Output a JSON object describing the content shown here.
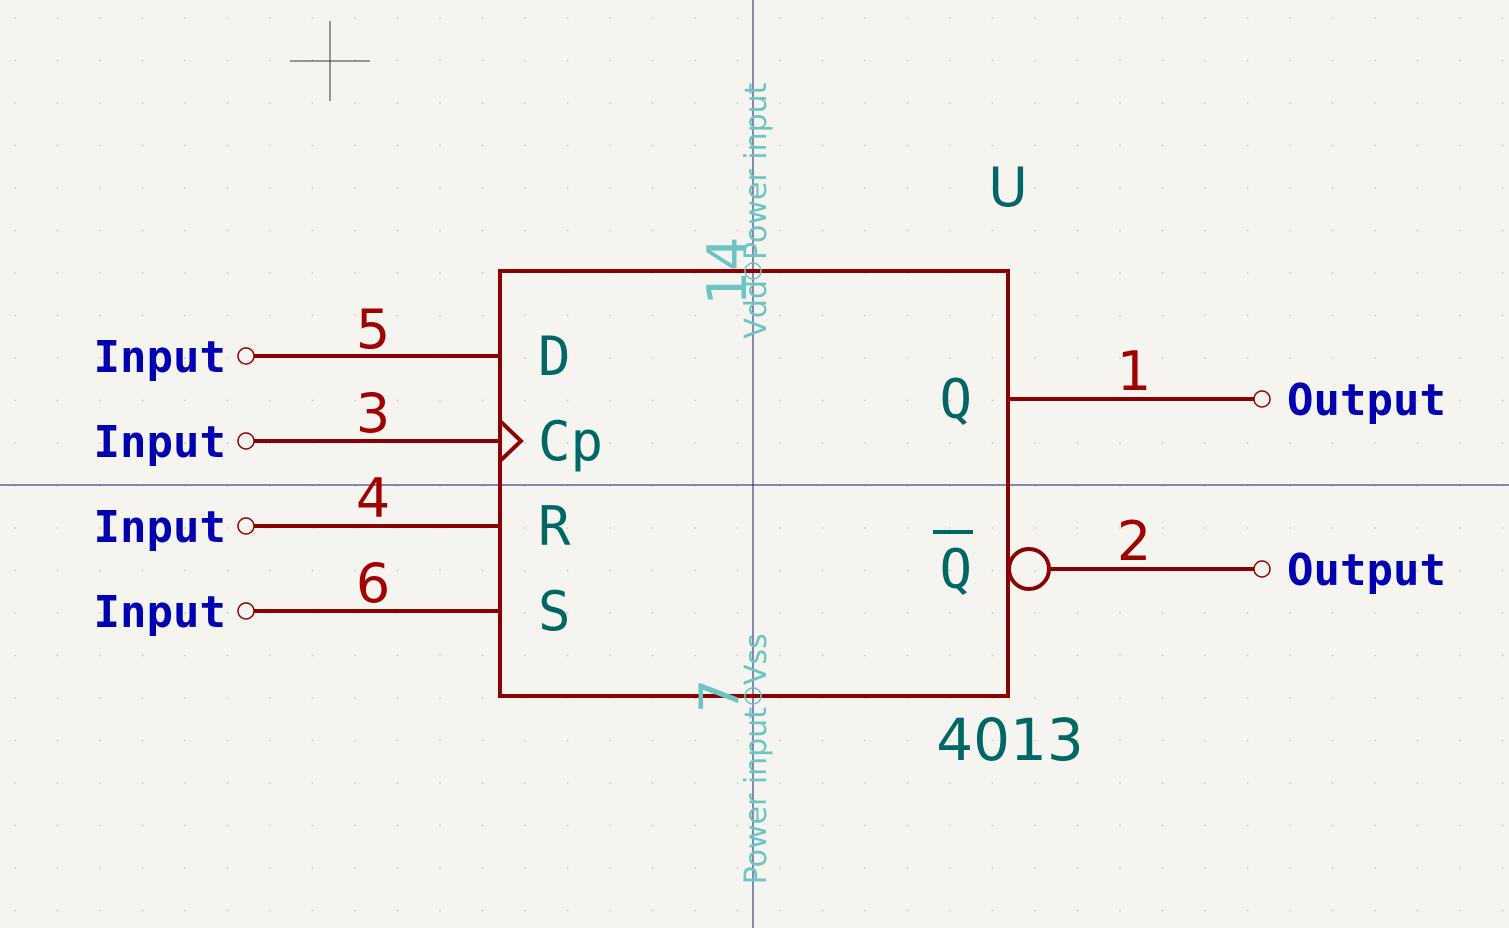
{
  "component": {
    "reference": "U",
    "value": "4013"
  },
  "pins": {
    "d": {
      "number": "5",
      "name": "D",
      "type": "Input"
    },
    "cp": {
      "number": "3",
      "name": "Cp",
      "type": "Input"
    },
    "r": {
      "number": "4",
      "name": "R",
      "type": "Input"
    },
    "s": {
      "number": "6",
      "name": "S",
      "type": "Input"
    },
    "q": {
      "number": "1",
      "name": "Q",
      "type": "Output"
    },
    "qbar": {
      "number": "2",
      "name": "Q",
      "type": "Output"
    },
    "vdd": {
      "number": "14",
      "name": "Vdd",
      "type": "Power input"
    },
    "vss": {
      "number": "7",
      "name": "Vss",
      "type": "Power input"
    }
  },
  "colors": {
    "background": "#f5f4ef",
    "body": "#8b0000",
    "pin_name": "#006666",
    "pin_type": "#0000b0",
    "power_pin": "#6cc4c4"
  }
}
